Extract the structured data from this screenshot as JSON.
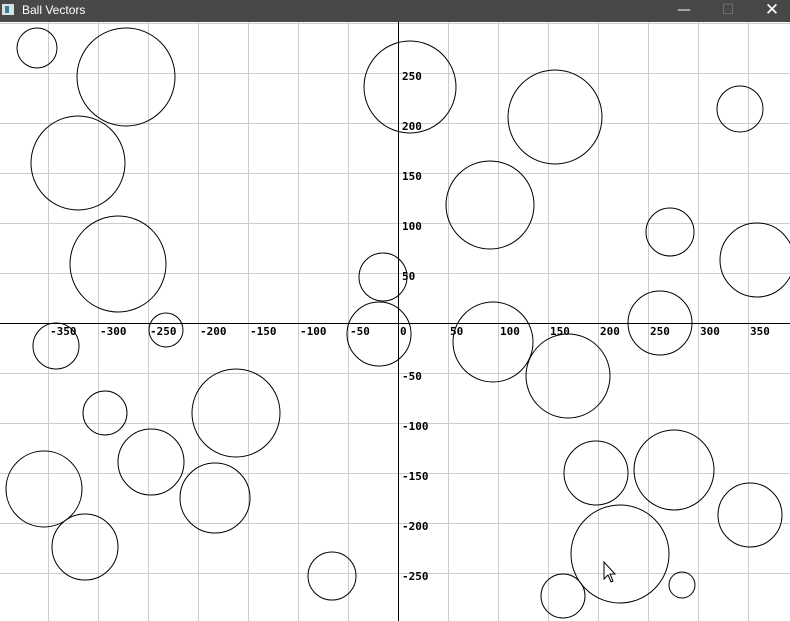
{
  "window": {
    "title": "Ball Vectors",
    "minimize_icon": "minimize-icon",
    "maximize_icon": "maximize-icon",
    "close_icon": "close-icon"
  },
  "colors": {
    "titlebar": "#4a4846",
    "grid": "#cccccc",
    "axis": "#000000",
    "ball": "#000000"
  },
  "axes": {
    "x_ticks": [
      "-350",
      "-300",
      "-250",
      "-200",
      "-150",
      "-100",
      "-50",
      "0",
      "50",
      "100",
      "150",
      "200",
      "250",
      "300",
      "350"
    ],
    "y_ticks": [
      "250",
      "200",
      "150",
      "100",
      "50",
      "-50",
      "-100",
      "-150",
      "-200",
      "-250"
    ],
    "grid_step": 50
  },
  "balls": [
    {
      "x": -361,
      "y": 275,
      "r": 20
    },
    {
      "x": -272,
      "y": 246,
      "r": 49
    },
    {
      "x": -320,
      "y": 160,
      "r": 47
    },
    {
      "x": -280,
      "y": 59,
      "r": 48
    },
    {
      "x": -232,
      "y": -7,
      "r": 17
    },
    {
      "x": -342,
      "y": -23,
      "r": 23
    },
    {
      "x": -293,
      "y": -90,
      "r": 22
    },
    {
      "x": -162,
      "y": -90,
      "r": 44
    },
    {
      "x": -247,
      "y": -139,
      "r": 33
    },
    {
      "x": -354,
      "y": -166,
      "r": 38
    },
    {
      "x": -183,
      "y": -175,
      "r": 35
    },
    {
      "x": -313,
      "y": -224,
      "r": 33
    },
    {
      "x": -66,
      "y": -253,
      "r": 24
    },
    {
      "x": 12,
      "y": 236,
      "r": 46
    },
    {
      "x": -15,
      "y": 46,
      "r": 24
    },
    {
      "x": -19,
      "y": -11,
      "r": 32
    },
    {
      "x": 92,
      "y": 118,
      "r": 44
    },
    {
      "x": 157,
      "y": 206,
      "r": 47
    },
    {
      "x": 342,
      "y": 214,
      "r": 23
    },
    {
      "x": 272,
      "y": 91,
      "r": 24
    },
    {
      "x": 359,
      "y": 63,
      "r": 37
    },
    {
      "x": 262,
      "y": 0,
      "r": 32
    },
    {
      "x": 95,
      "y": -19,
      "r": 40
    },
    {
      "x": 170,
      "y": -53,
      "r": 42
    },
    {
      "x": 198,
      "y": -150,
      "r": 32
    },
    {
      "x": 276,
      "y": -147,
      "r": 40
    },
    {
      "x": 352,
      "y": -192,
      "r": 32
    },
    {
      "x": 222,
      "y": -231,
      "r": 49
    },
    {
      "x": 165,
      "y": -273,
      "r": 22
    },
    {
      "x": 284,
      "y": -262,
      "r": 13
    }
  ]
}
